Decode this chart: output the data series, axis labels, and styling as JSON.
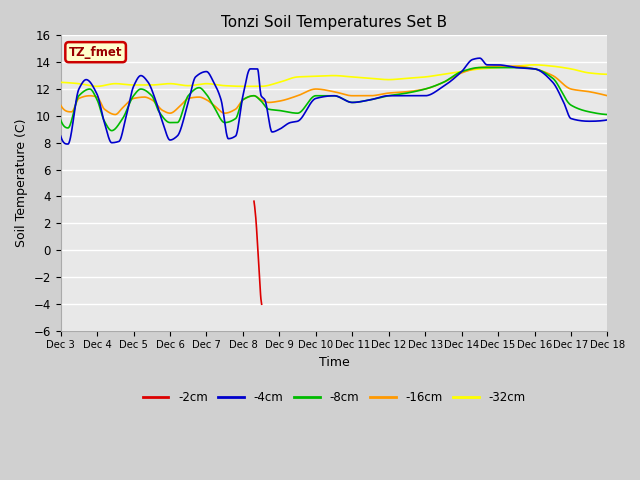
{
  "title": "Tonzi Soil Temperatures Set B",
  "xlabel": "Time",
  "ylabel": "Soil Temperature (C)",
  "ylim": [
    -6,
    16
  ],
  "yticks": [
    -6,
    -4,
    -2,
    0,
    2,
    4,
    6,
    8,
    10,
    12,
    14,
    16
  ],
  "legend_label": "TZ_fmet",
  "legend_box_color": "#ffffcc",
  "legend_box_edge": "#cc0000",
  "legend_text_color": "#990000",
  "line_colors": {
    "-2cm": "#dd0000",
    "-4cm": "#0000cc",
    "-8cm": "#00bb00",
    "-16cm": "#ff9900",
    "-32cm": "#ffff00"
  },
  "x_tick_labels": [
    "Dec 3",
    "Dec 4",
    "Dec 5",
    "Dec 6",
    "Dec 7",
    "Dec 8",
    "Dec 9",
    "Dec 10",
    "Dec 11",
    "Dec 12",
    "Dec 13",
    "Dec 14",
    "Dec 15",
    "Dec 16",
    "Dec 17",
    "Dec 18"
  ],
  "fig_bg": "#d0d0d0",
  "ax_bg": "#e8e8e8",
  "grid_color": "#ffffff"
}
